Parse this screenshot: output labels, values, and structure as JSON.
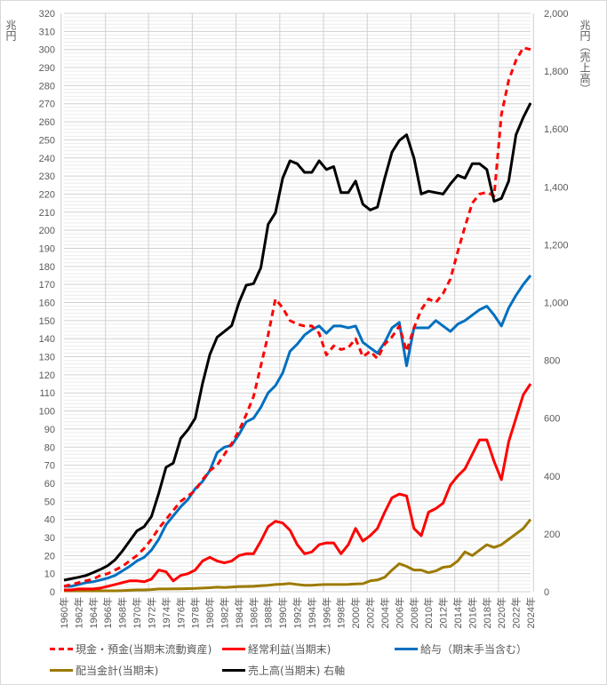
{
  "chart_data": {
    "type": "line",
    "title": "",
    "left_axis": {
      "label": "兆円",
      "ylim": [
        0,
        320
      ],
      "step": 10
    },
    "right_axis": {
      "label": "兆円（売上高）",
      "ylim": [
        0,
        2000
      ],
      "step": 200
    },
    "x_tick_labels": [
      "1960年",
      "1962年",
      "1964年",
      "1966年",
      "1968年",
      "1970年",
      "1972年",
      "1974年",
      "1976年",
      "1978年",
      "1980年",
      "1982年",
      "1984年",
      "1986年",
      "1988年",
      "1990年",
      "1992年",
      "1994年",
      "1996年",
      "1998年",
      "2000年",
      "2002年",
      "2004年",
      "2006年",
      "2008年",
      "2010年",
      "2012年",
      "2014年",
      "2016年",
      "2018年",
      "2020年",
      "2022年",
      "2024年"
    ],
    "left_tick_labels": [
      "0",
      "10",
      "20",
      "30",
      "40",
      "50",
      "60",
      "70",
      "80",
      "90",
      "100",
      "110",
      "120",
      "130",
      "140",
      "150",
      "160",
      "170",
      "180",
      "190",
      "200",
      "210",
      "220",
      "230",
      "240",
      "250",
      "260",
      "270",
      "280",
      "290",
      "300",
      "310",
      "320"
    ],
    "right_tick_labels": [
      "0",
      "200",
      "400",
      "600",
      "800",
      "1,000",
      "1,200",
      "1,400",
      "1,600",
      "1,800",
      "2,000"
    ],
    "x": [
      1960,
      1961,
      1962,
      1963,
      1964,
      1965,
      1966,
      1967,
      1968,
      1969,
      1970,
      1971,
      1972,
      1973,
      1974,
      1975,
      1976,
      1977,
      1978,
      1979,
      1980,
      1981,
      1982,
      1983,
      1984,
      1985,
      1986,
      1987,
      1988,
      1989,
      1990,
      1991,
      1992,
      1993,
      1994,
      1995,
      1996,
      1997,
      1998,
      1999,
      2000,
      2001,
      2002,
      2003,
      2004,
      2005,
      2006,
      2007,
      2008,
      2009,
      2010,
      2011,
      2012,
      2013,
      2014,
      2015,
      2016,
      2017,
      2018,
      2019,
      2020,
      2021,
      2022,
      2023,
      2024
    ],
    "grid": true,
    "legend_position": "bottom",
    "series": [
      {
        "name": "現金・預金(当期末流動資産)",
        "axis": "left",
        "color": "#ff0000",
        "dash": true,
        "values": [
          3,
          4,
          5,
          6,
          7,
          9,
          10,
          12,
          14,
          17,
          20,
          24,
          29,
          35,
          40,
          45,
          50,
          53,
          56,
          62,
          67,
          70,
          76,
          82,
          89,
          98,
          108,
          125,
          142,
          162,
          157,
          150,
          148,
          147,
          147,
          143,
          131,
          136,
          134,
          135,
          140,
          130,
          133,
          129,
          137,
          141,
          147,
          133,
          146,
          156,
          162,
          160,
          165,
          173,
          188,
          202,
          215,
          220,
          221,
          219,
          264,
          283,
          294,
          301,
          300
        ]
      },
      {
        "name": "経常利益(当期末)",
        "axis": "left",
        "color": "#ff0000",
        "dash": false,
        "values": [
          1,
          1,
          1.5,
          1.5,
          1.5,
          2,
          3,
          4,
          5,
          6,
          6,
          5.5,
          7,
          12,
          11,
          6,
          9,
          10,
          12,
          17,
          19,
          17,
          16,
          17,
          20,
          21,
          21,
          28,
          36,
          39,
          38,
          34,
          26,
          21,
          22,
          26,
          27,
          27,
          21,
          26,
          35,
          28,
          31,
          35,
          44,
          52,
          54,
          53,
          35,
          31,
          44,
          46,
          49,
          59,
          64,
          68,
          76,
          84,
          84,
          72,
          62,
          83,
          96,
          109,
          115
        ]
      },
      {
        "name": "給与（期末手当含む）",
        "axis": "left",
        "color": "#0070c0",
        "dash": false,
        "values": [
          3,
          3,
          4,
          5,
          5.5,
          6.5,
          7.5,
          9,
          11.5,
          14,
          17,
          19,
          23,
          29,
          37,
          42,
          47,
          51,
          57,
          61,
          67,
          77,
          80,
          81,
          87,
          94,
          96,
          102,
          110,
          114,
          121,
          133,
          137,
          142,
          145,
          147,
          143,
          147,
          147,
          146,
          147,
          138,
          135,
          132,
          138,
          146,
          149,
          125,
          146,
          146,
          146,
          150,
          147,
          144,
          148,
          150,
          153,
          156,
          158,
          153,
          147,
          157,
          164,
          170,
          175
        ]
      },
      {
        "name": "配当金計(当期末)",
        "axis": "left",
        "color": "#9c7a00",
        "dash": false,
        "values": [
          0.5,
          0.5,
          0.5,
          0.5,
          0.5,
          0.5,
          0.5,
          0.5,
          0.6,
          0.8,
          1,
          1,
          1.2,
          1.5,
          1.5,
          1.6,
          1.6,
          1.7,
          1.8,
          2,
          2.2,
          2.5,
          2.3,
          2.6,
          2.8,
          2.9,
          3,
          3.3,
          3.6,
          4,
          4.2,
          4.5,
          4,
          3.6,
          3.6,
          3.9,
          4,
          4,
          4,
          4.1,
          4.3,
          4.4,
          6,
          6.5,
          8,
          12,
          15.5,
          14,
          12,
          12,
          10.5,
          11.5,
          13.5,
          14,
          17,
          22,
          20,
          23,
          26,
          24.5,
          26,
          29,
          32,
          35,
          40
        ]
      },
      {
        "name": "売上高(当期末) 右軸",
        "axis": "right",
        "color": "#000000",
        "dash": false,
        "values": [
          40,
          45,
          50,
          56,
          66,
          77,
          90,
          110,
          140,
          175,
          210,
          225,
          260,
          340,
          430,
          445,
          530,
          560,
          600,
          720,
          820,
          880,
          900,
          920,
          1000,
          1060,
          1065,
          1120,
          1270,
          1310,
          1430,
          1490,
          1480,
          1450,
          1450,
          1490,
          1460,
          1470,
          1380,
          1380,
          1420,
          1340,
          1320,
          1330,
          1430,
          1520,
          1560,
          1580,
          1500,
          1375,
          1385,
          1380,
          1375,
          1410,
          1440,
          1430,
          1480,
          1480,
          1460,
          1350,
          1360,
          1420,
          1580,
          1640,
          1690
        ]
      }
    ]
  }
}
